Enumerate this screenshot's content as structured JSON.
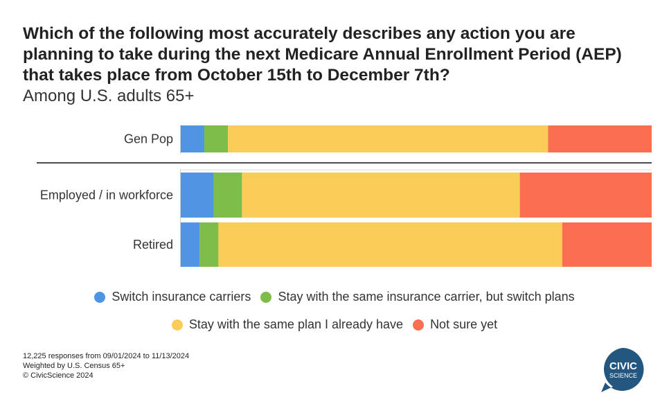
{
  "header": {
    "title": "Which of the following most accurately describes any action you are planning to take during the next Medicare Annual Enrollment Period (AEP) that takes place from October 15th to December 7th?",
    "subtitle": "Among U.S. adults 65+"
  },
  "chart_data": {
    "type": "bar",
    "orientation": "horizontal",
    "stacked": true,
    "normalized_percent": true,
    "categories": [
      "Gen Pop",
      "Employed / in workforce",
      "Retired"
    ],
    "series": [
      {
        "name": "Switch insurance carriers",
        "color": "#4f95e4",
        "values": [
          5,
          7,
          4
        ]
      },
      {
        "name": "Stay with the same insurance carrier, but switch plans",
        "color": "#7fbd4a",
        "values": [
          5,
          6,
          4
        ]
      },
      {
        "name": "Stay with the same plan I already have",
        "color": "#fccc59",
        "values": [
          68,
          59,
          73
        ]
      },
      {
        "name": "Not sure yet",
        "color": "#fb6e51",
        "values": [
          22,
          28,
          19
        ]
      }
    ],
    "xlim": [
      0,
      100
    ],
    "grid": false,
    "legend_position": "bottom"
  },
  "footnotes": {
    "responses": "12,225 responses from 09/01/2024 to 11/13/2024",
    "weighting": "Weighted by U.S. Census 65+",
    "copyright": "© CivicScience 2024"
  },
  "logo": {
    "line1": "CIVIC",
    "line2": "SCIENCE",
    "color": "#24577f"
  }
}
